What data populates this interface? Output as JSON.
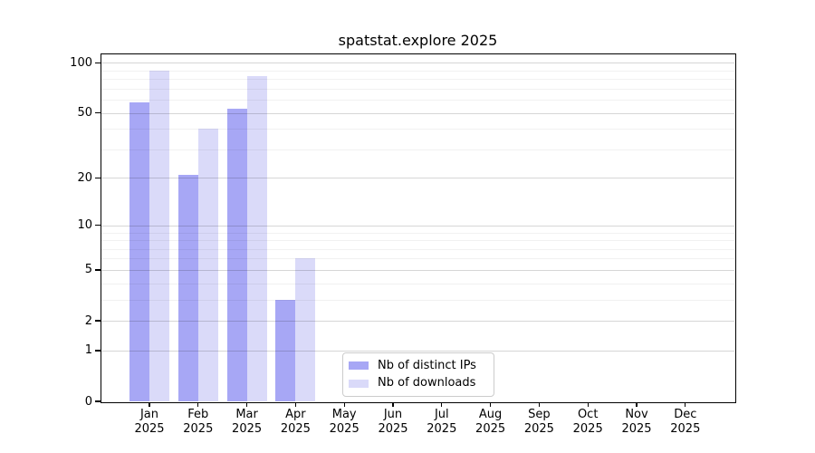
{
  "chart_data": {
    "type": "bar",
    "title": "spatstat.explore 2025",
    "categories": [
      "Jan",
      "Feb",
      "Mar",
      "Apr",
      "May",
      "Jun",
      "Jul",
      "Aug",
      "Sep",
      "Oct",
      "Nov",
      "Dec"
    ],
    "x_tick_second_line": "2025",
    "series": [
      {
        "name": "Nb of distinct IPs",
        "color": "#a7a7f5",
        "values": [
          58,
          21,
          53,
          3,
          0,
          0,
          0,
          0,
          0,
          0,
          0,
          0
        ]
      },
      {
        "name": "Nb of downloads",
        "color": "#dadaf9",
        "values": [
          90,
          40,
          83,
          6,
          0,
          0,
          0,
          0,
          0,
          0,
          0,
          0
        ]
      }
    ],
    "y_scale": "log1p",
    "y_axis_tick_values": [
      0,
      1,
      2,
      5,
      10,
      20,
      50,
      100
    ],
    "y_axis_tick_labels": [
      "0",
      "1",
      "2",
      "5",
      "10",
      "20",
      "50",
      "100"
    ],
    "y_minor_gridline_values": [
      3,
      4,
      6,
      7,
      8,
      9,
      30,
      40,
      60,
      70,
      80,
      90
    ],
    "ylim": [
      0,
      113
    ],
    "xlabel": "",
    "ylabel": "",
    "grid": "horizontal, major and minor, drawn over bars",
    "legend_position": "inside bottom-center",
    "style": {
      "spine_color": "#000000",
      "grid_major_color": "rgba(0,0,0,0.16)",
      "grid_minor_color": "rgba(0,0,0,0.055)",
      "background": "#ffffff"
    }
  }
}
